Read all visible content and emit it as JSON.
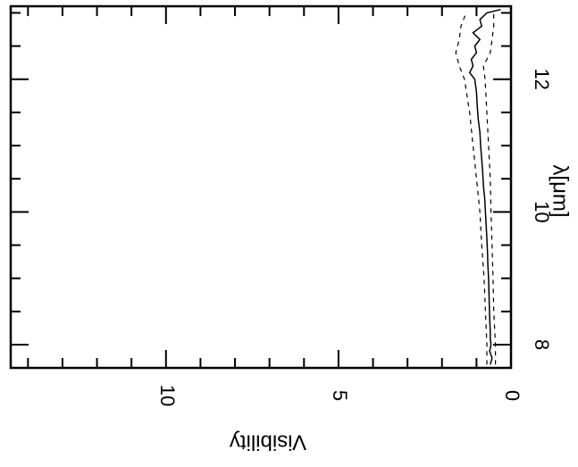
{
  "chart_data": {
    "type": "line",
    "orientation": "rotated-90-clockwise",
    "xlabel": "λ[μm]",
    "ylabel": "Visibility",
    "xlim": [
      7.65,
      13.1
    ],
    "ylim": [
      0,
      14.5
    ],
    "x_ticks": [
      8,
      10,
      12
    ],
    "x_tick_labels": [
      "8",
      "10",
      "12"
    ],
    "x_minor_step": 0.5,
    "y_ticks": [
      0,
      5,
      10
    ],
    "y_tick_labels": [
      "0",
      "5",
      "10"
    ],
    "y_minor_step": 1,
    "grid": false,
    "series": [
      {
        "role": "measurement",
        "style": "solid",
        "x": [
          7.7,
          7.8,
          7.9,
          8.0,
          8.1,
          8.2,
          8.4,
          8.6,
          8.8,
          9.0,
          9.2,
          9.4,
          9.6,
          9.8,
          10.0,
          10.2,
          10.4,
          10.6,
          10.8,
          11.0,
          11.2,
          11.4,
          11.6,
          11.8,
          12.0,
          12.1,
          12.2,
          12.3,
          12.4,
          12.5,
          12.6,
          12.7,
          12.8,
          12.9,
          13.0,
          13.05
        ],
        "y": [
          0.6,
          0.55,
          0.62,
          0.58,
          0.6,
          0.6,
          0.62,
          0.63,
          0.64,
          0.65,
          0.67,
          0.68,
          0.7,
          0.72,
          0.74,
          0.76,
          0.8,
          0.82,
          0.85,
          0.88,
          0.9,
          0.95,
          0.98,
          1.0,
          1.05,
          1.2,
          1.1,
          1.15,
          1.0,
          1.05,
          0.9,
          1.1,
          0.85,
          0.9,
          0.7,
          0.3
        ]
      },
      {
        "role": "upper-error",
        "style": "dashed",
        "x": [
          7.7,
          8.0,
          8.5,
          9.0,
          9.5,
          10.0,
          10.5,
          11.0,
          11.5,
          12.0,
          12.2,
          12.4,
          12.6,
          12.8,
          13.0
        ],
        "y": [
          0.7,
          0.7,
          0.74,
          0.78,
          0.85,
          0.9,
          1.0,
          1.1,
          1.2,
          1.35,
          1.5,
          1.6,
          1.5,
          1.45,
          1.3
        ]
      },
      {
        "role": "lower-error",
        "style": "dashed",
        "x": [
          7.7,
          8.0,
          8.5,
          9.0,
          9.5,
          10.0,
          10.5,
          11.0,
          11.5,
          12.0,
          12.2,
          12.4,
          12.6,
          12.8,
          13.0
        ],
        "y": [
          0.45,
          0.45,
          0.5,
          0.52,
          0.55,
          0.58,
          0.6,
          0.65,
          0.7,
          0.75,
          0.8,
          0.6,
          0.55,
          0.5,
          0.5
        ]
      }
    ]
  }
}
